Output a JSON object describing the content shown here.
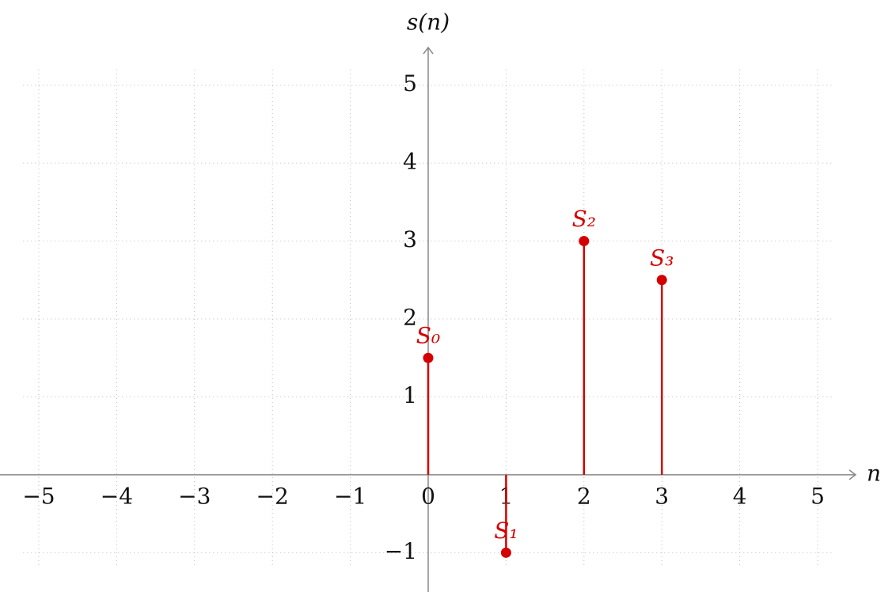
{
  "chart_data": {
    "type": "stem",
    "x_label": "n",
    "y_label": "s(n)",
    "x": [
      0,
      1,
      2,
      3
    ],
    "values": [
      1.5,
      -1,
      3,
      2.5
    ],
    "point_labels": [
      "S₀",
      "S₁",
      "S₂",
      "S₃"
    ],
    "color": "#d40000",
    "xlim": [
      -5.2,
      5.2
    ],
    "ylim": [
      -1.2,
      5.2
    ],
    "xticks": [
      {
        "value": -5,
        "label": "−5"
      },
      {
        "value": -4,
        "label": "−4"
      },
      {
        "value": -3,
        "label": "−3"
      },
      {
        "value": -2,
        "label": "−2"
      },
      {
        "value": -1,
        "label": "−1"
      },
      0,
      1,
      2,
      3,
      4,
      5
    ],
    "yticks": [
      {
        "value": -1,
        "label": "−1"
      },
      1,
      2,
      3,
      4,
      5
    ],
    "grid": true
  }
}
